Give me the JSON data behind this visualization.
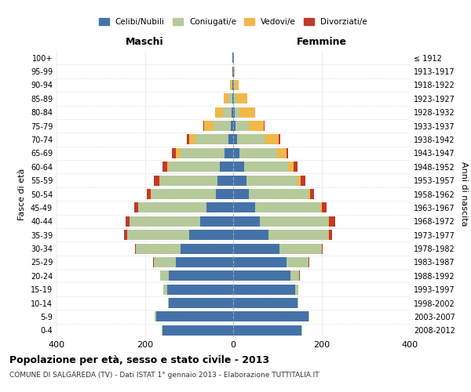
{
  "age_groups": [
    "0-4",
    "5-9",
    "10-14",
    "15-19",
    "20-24",
    "25-29",
    "30-34",
    "35-39",
    "40-44",
    "45-49",
    "50-54",
    "55-59",
    "60-64",
    "65-69",
    "70-74",
    "75-79",
    "80-84",
    "85-89",
    "90-94",
    "95-99",
    "100+"
  ],
  "birth_years": [
    "2008-2012",
    "2003-2007",
    "1998-2002",
    "1993-1997",
    "1988-1992",
    "1983-1987",
    "1978-1982",
    "1973-1977",
    "1968-1972",
    "1963-1967",
    "1958-1962",
    "1953-1957",
    "1948-1952",
    "1943-1947",
    "1938-1942",
    "1933-1937",
    "1928-1932",
    "1923-1927",
    "1918-1922",
    "1913-1917",
    "≤ 1912"
  ],
  "colors": {
    "celibi": "#4472a8",
    "coniugati": "#b5c99a",
    "vedovi": "#f0b84a",
    "divorziati": "#c0392b"
  },
  "legend_labels": [
    "Celibi/Nubili",
    "Coniugati/e",
    "Vedovi/e",
    "Divorziati/e"
  ],
  "maschi": {
    "celibi": [
      160,
      175,
      145,
      150,
      145,
      130,
      120,
      100,
      75,
      60,
      40,
      35,
      30,
      20,
      10,
      5,
      3,
      2,
      1,
      1,
      1
    ],
    "coniugati": [
      1,
      2,
      2,
      8,
      20,
      50,
      100,
      140,
      160,
      155,
      145,
      130,
      115,
      100,
      75,
      40,
      20,
      8,
      2,
      0,
      0
    ],
    "vedovi": [
      0,
      0,
      0,
      0,
      0,
      0,
      0,
      0,
      0,
      1,
      2,
      3,
      5,
      10,
      15,
      20,
      18,
      12,
      4,
      1,
      0
    ],
    "divorziati": [
      0,
      0,
      0,
      0,
      1,
      2,
      2,
      8,
      8,
      8,
      8,
      12,
      10,
      8,
      5,
      2,
      0,
      0,
      0,
      0,
      0
    ]
  },
  "femmine": {
    "nubili": [
      155,
      170,
      145,
      140,
      130,
      120,
      105,
      80,
      60,
      50,
      35,
      30,
      25,
      15,
      8,
      5,
      3,
      2,
      1,
      1,
      1
    ],
    "coniugate": [
      1,
      2,
      2,
      8,
      20,
      50,
      95,
      135,
      155,
      148,
      135,
      115,
      100,
      85,
      65,
      30,
      12,
      5,
      2,
      0,
      0
    ],
    "vedove": [
      0,
      0,
      0,
      0,
      0,
      0,
      0,
      1,
      1,
      3,
      5,
      8,
      12,
      20,
      30,
      35,
      35,
      25,
      10,
      3,
      1
    ],
    "divorziate": [
      0,
      0,
      0,
      0,
      1,
      2,
      3,
      8,
      15,
      10,
      8,
      10,
      8,
      5,
      3,
      1,
      0,
      0,
      0,
      0,
      0
    ]
  },
  "title": "Popolazione per età, sesso e stato civile - 2013",
  "subtitle": "COMUNE DI SALGAREDA (TV) - Dati ISTAT 1° gennaio 2013 - Elaborazione TUTTITALIA.IT",
  "xlabel_left": "Maschi",
  "xlabel_right": "Femmine",
  "ylabel_left": "Fasce di età",
  "ylabel_right": "Anni di nascita",
  "xlim": 400,
  "bg_color": "#ffffff",
  "grid_color": "#c8c8c8",
  "bar_height": 0.75
}
